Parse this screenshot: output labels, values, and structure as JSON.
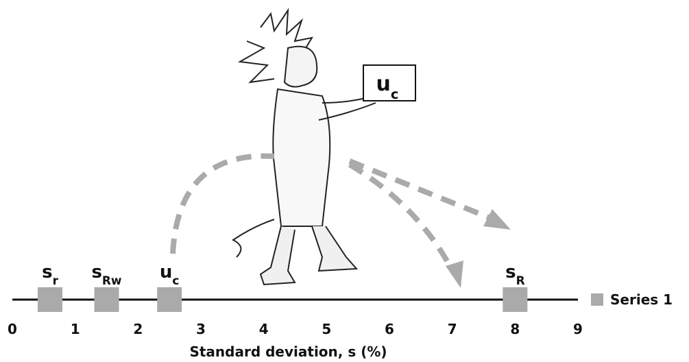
{
  "chart_data": {
    "type": "dot",
    "series": [
      {
        "name": "Series 1",
        "color": "#aaaaaa",
        "x": [
          0.6,
          1.5,
          2.5,
          8.0
        ],
        "point_labels": [
          {
            "text": "s",
            "sub": "r"
          },
          {
            "text": "s",
            "sub": "Rw"
          },
          {
            "text": "u",
            "sub": "c"
          },
          {
            "text": "s",
            "sub": "R"
          }
        ]
      }
    ],
    "xlim": [
      0,
      9
    ],
    "xticks": [
      0,
      1,
      2,
      3,
      4,
      5,
      6,
      7,
      8,
      9
    ],
    "xlabel": "Standard deviation, s (%)",
    "annotation": {
      "text": "u",
      "sub": "c"
    },
    "legend": "right"
  }
}
